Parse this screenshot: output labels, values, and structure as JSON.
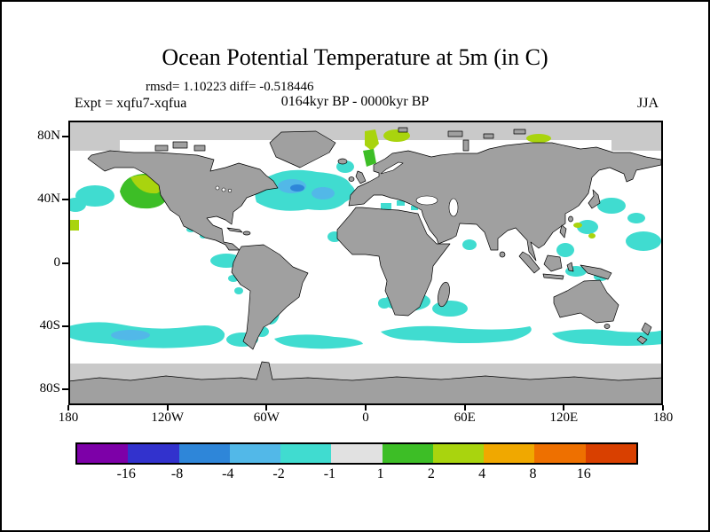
{
  "figure": {
    "title": "Ocean Potential Temperature at 5m (in C)",
    "stats_line": "rmsd= 1.10223 diff= -0.518446",
    "experiment_label": "Expt = xqfu7-xqfua",
    "period_label": "0164kyr BP - 0000kyr BP",
    "season_label": "JJA"
  },
  "axes": {
    "lat_ticks": [
      {
        "label": "80N",
        "lat": 80
      },
      {
        "label": "40N",
        "lat": 40
      },
      {
        "label": "0",
        "lat": 0
      },
      {
        "label": "40S",
        "lat": -40
      },
      {
        "label": "80S",
        "lat": -80
      }
    ],
    "lon_ticks": [
      {
        "label": "180",
        "lon": -180
      },
      {
        "label": "120W",
        "lon": -120
      },
      {
        "label": "60W",
        "lon": -60
      },
      {
        "label": "0",
        "lon": 0
      },
      {
        "label": "60E",
        "lon": 60
      },
      {
        "label": "120E",
        "lon": 120
      },
      {
        "label": "180",
        "lon": 180
      }
    ]
  },
  "colorbar": {
    "labels": [
      "-16",
      "-8",
      "-4",
      "-2",
      "-1",
      "1",
      "2",
      "4",
      "8",
      "16"
    ],
    "segment_colors": [
      "#7d00a8",
      "#3232cd",
      "#2e86d9",
      "#52b8e8",
      "#40dcd0",
      "#e1e1e1",
      "#3dbe26",
      "#a9d40e",
      "#f0a800",
      "#ee7000",
      "#d94000"
    ]
  },
  "map_colors": {
    "land": "#a0a0a0",
    "ocean": "#ffffff",
    "ice_or_missing": "#c9c9c9",
    "coastline": "#000000"
  },
  "chart_data": {
    "type": "heatmap",
    "title": "Ocean Potential Temperature at 5m (in C)",
    "variable": "ocean potential temperature anomaly at 5m depth",
    "units": "C",
    "season": "JJA",
    "experiment": "xqfu7-xqfua",
    "period": "0164kyr BP - 0000kyr BP",
    "rmsd": 1.10223,
    "mean_diff": -0.518446,
    "projection": "equirectangular world map",
    "xlim": [
      -180,
      180
    ],
    "ylim": [
      -90,
      90
    ],
    "x_tick_labels": [
      "180",
      "120W",
      "60W",
      "0",
      "60E",
      "120E",
      "180"
    ],
    "y_tick_labels": [
      "80N",
      "40N",
      "0",
      "40S",
      "80S"
    ],
    "contour_levels": [
      -16,
      -8,
      -4,
      -2,
      -1,
      1,
      2,
      4,
      8,
      16
    ],
    "level_colors": [
      "#7d00a8",
      "#3232cd",
      "#2e86d9",
      "#52b8e8",
      "#40dcd0",
      "#e1e1e1",
      "#3dbe26",
      "#a9d40e",
      "#f0a800",
      "#ee7000",
      "#d94000"
    ],
    "legend_position": "bottom",
    "notable_anomalies": [
      {
        "region": "North Atlantic subpolar gyre",
        "sign": "negative",
        "approx_range_c": "-4 to -1"
      },
      {
        "region": "Southern Ocean circumpolar band 40S-55S",
        "sign": "negative",
        "approx_range_c": "-2 to -1"
      },
      {
        "region": "Gulf of Alaska / NE Pacific coast",
        "sign": "positive",
        "approx_range_c": "1 to 4"
      },
      {
        "region": "Norwegian Sea and Barents Sea",
        "sign": "positive",
        "approx_range_c": "1 to 4"
      },
      {
        "region": "Western Pacific near Japan, Philippines and Indonesia",
        "sign": "negative",
        "approx_range_c": "-2 to -1"
      },
      {
        "region": "Mid-latitude Indian Ocean",
        "sign": "negative",
        "approx_range_c": "-2 to -1"
      },
      {
        "region": "Equatorial and South Atlantic coastal patches",
        "sign": "negative",
        "approx_range_c": "-2 to -1"
      },
      {
        "region": "Polar oceans shown as gray (ice / no data)",
        "sign": "none",
        "approx_range_c": "n/a"
      }
    ]
  }
}
